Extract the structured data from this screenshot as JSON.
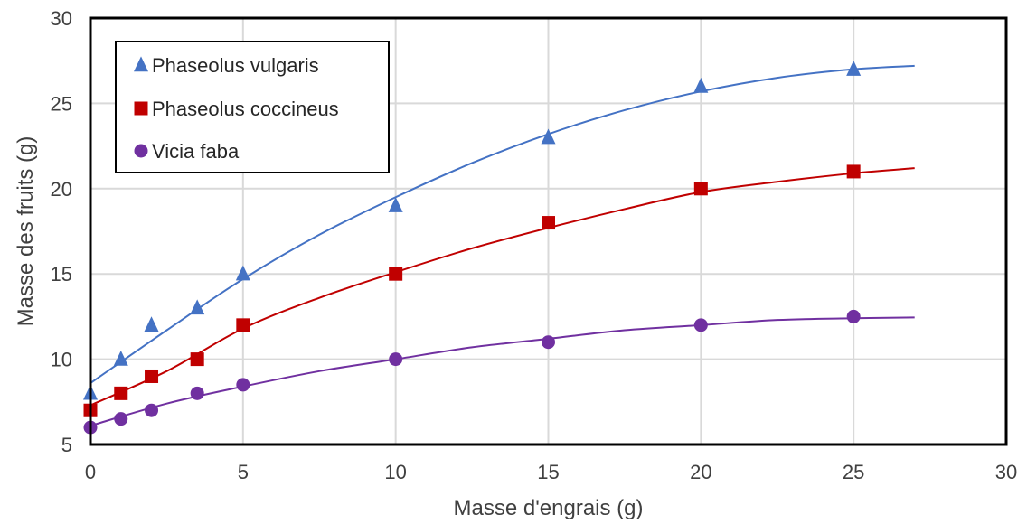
{
  "chart_data": {
    "type": "scatter",
    "xlabel": "Masse d'engrais (g)",
    "ylabel": "Masse des fruits (g)",
    "xlim": [
      0,
      30
    ],
    "ylim": [
      5,
      30
    ],
    "x_ticks": [
      0,
      5,
      10,
      15,
      20,
      25,
      30
    ],
    "y_ticks": [
      5,
      10,
      15,
      20,
      25,
      30
    ],
    "grid": true,
    "legend_position": "top-left",
    "trendlines": "smooth curve fitted through each series",
    "series": [
      {
        "name": "Phaseolus vulgaris",
        "marker": "triangle",
        "color": "#4472c4",
        "x": [
          0,
          1,
          2,
          3.5,
          5,
          10,
          15,
          20,
          25
        ],
        "y": [
          8,
          10,
          12,
          13,
          15,
          19,
          23,
          26,
          27
        ],
        "trend_x": [
          0,
          2.5,
          5,
          7.5,
          10,
          12.5,
          15,
          17.5,
          20,
          22.5,
          25,
          27
        ],
        "trend_y": [
          8.6,
          11.7,
          14.7,
          17.3,
          19.5,
          21.5,
          23.2,
          24.6,
          25.7,
          26.5,
          27.0,
          27.2
        ]
      },
      {
        "name": "Phaseolus coccineus",
        "marker": "square",
        "color": "#c00000",
        "x": [
          0,
          1,
          2,
          3.5,
          5,
          10,
          15,
          20,
          25
        ],
        "y": [
          7,
          8,
          9,
          10,
          12,
          15,
          18,
          20,
          21
        ],
        "trend_x": [
          0,
          2.5,
          5,
          7.5,
          10,
          12.5,
          15,
          17.5,
          20,
          22.5,
          25,
          27
        ],
        "trend_y": [
          7.3,
          9.3,
          11.8,
          13.6,
          15.1,
          16.5,
          17.7,
          18.8,
          19.8,
          20.4,
          20.9,
          21.2
        ]
      },
      {
        "name": "Vicia faba",
        "marker": "circle",
        "color": "#7030a0",
        "x": [
          0,
          1,
          2,
          3.5,
          5,
          10,
          15,
          20,
          25
        ],
        "y": [
          6,
          6.5,
          7,
          8,
          8.5,
          10,
          11,
          12,
          12.5
        ],
        "trend_x": [
          0,
          2.5,
          5,
          7.5,
          10,
          12.5,
          15,
          17.5,
          20,
          22.5,
          25,
          27
        ],
        "trend_y": [
          6.1,
          7.4,
          8.4,
          9.3,
          10.0,
          10.7,
          11.2,
          11.7,
          12.0,
          12.3,
          12.4,
          12.45
        ]
      }
    ]
  }
}
